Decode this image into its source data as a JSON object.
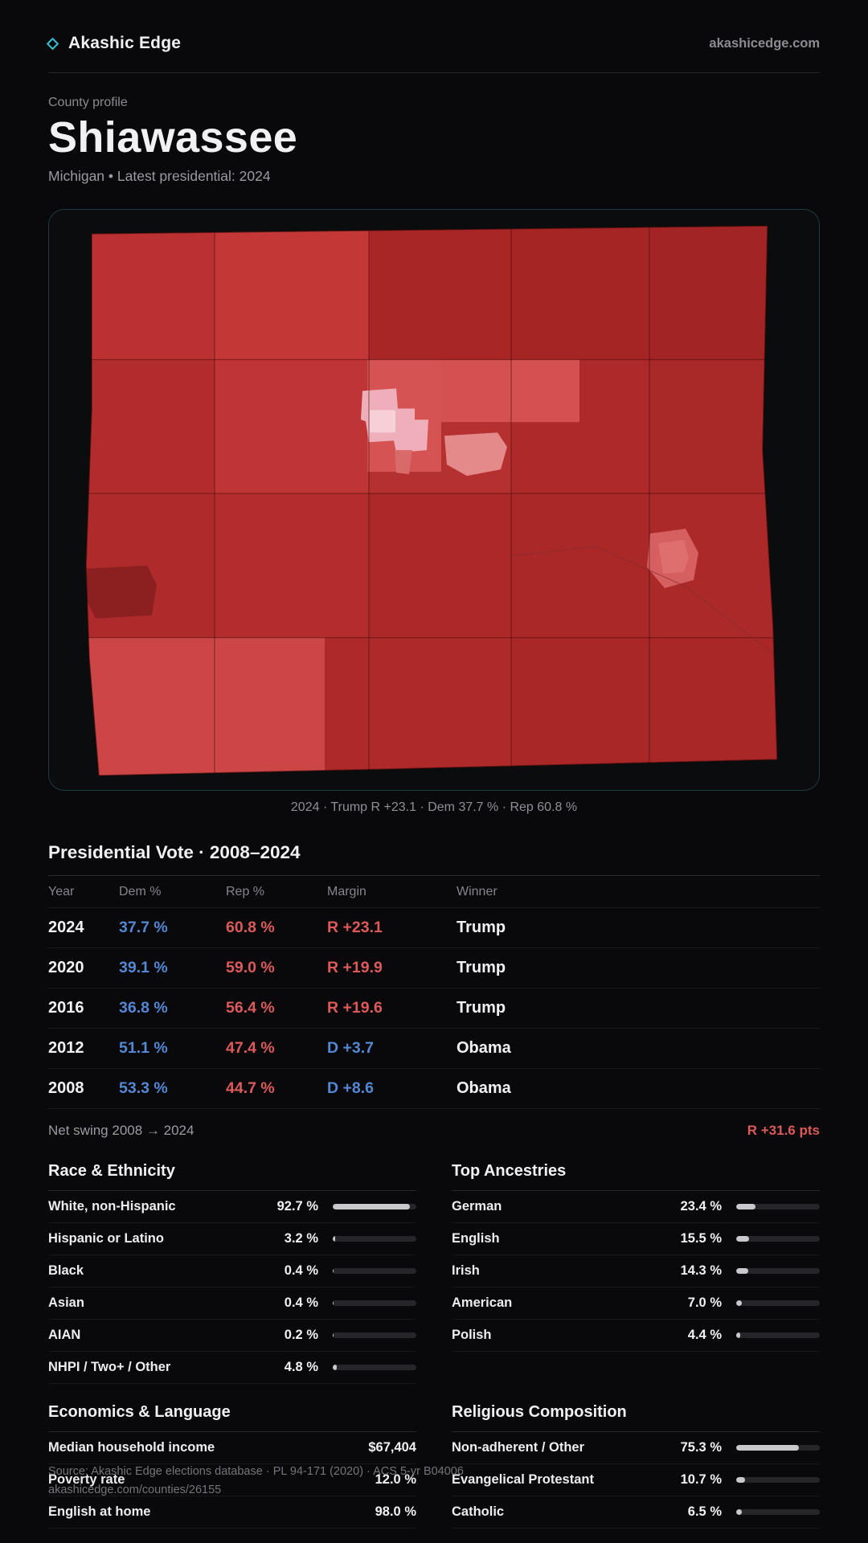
{
  "brand": {
    "name": "Akashic Edge",
    "domain": "akashicedge.com"
  },
  "profile": {
    "kicker": "County profile",
    "title": "Shiawassee",
    "subtitle": "Michigan • Latest presidential: 2024"
  },
  "map": {
    "caption": "2024 · Trump R +23.1 · Dem 37.7 % · Rep 60.8 %"
  },
  "vote_table": {
    "title": "Presidential Vote · 2008–2024",
    "columns": [
      "Year",
      "Dem %",
      "Rep %",
      "Margin",
      "Winner"
    ],
    "rows": [
      {
        "year": "2024",
        "dem": "37.7 %",
        "rep": "60.8 %",
        "margin": "R +23.1",
        "margin_party": "R",
        "winner": "Trump"
      },
      {
        "year": "2020",
        "dem": "39.1 %",
        "rep": "59.0 %",
        "margin": "R +19.9",
        "margin_party": "R",
        "winner": "Trump"
      },
      {
        "year": "2016",
        "dem": "36.8 %",
        "rep": "56.4 %",
        "margin": "R +19.6",
        "margin_party": "R",
        "winner": "Trump"
      },
      {
        "year": "2012",
        "dem": "51.1 %",
        "rep": "47.4 %",
        "margin": "D +3.7",
        "margin_party": "D",
        "winner": "Obama"
      },
      {
        "year": "2008",
        "dem": "53.3 %",
        "rep": "44.7 %",
        "margin": "D +8.6",
        "margin_party": "D",
        "winner": "Obama"
      }
    ]
  },
  "net_swing": {
    "label": "Net swing 2008 → 2024",
    "value": "R +31.6 pts"
  },
  "race": {
    "title": "Race & Ethnicity",
    "rows": [
      {
        "label": "White, non-Hispanic",
        "value": "92.7 %",
        "pct": 92.7
      },
      {
        "label": "Hispanic or Latino",
        "value": "3.2 %",
        "pct": 3.2
      },
      {
        "label": "Black",
        "value": "0.4 %",
        "pct": 0.4
      },
      {
        "label": "Asian",
        "value": "0.4 %",
        "pct": 0.4
      },
      {
        "label": "AIAN",
        "value": "0.2 %",
        "pct": 0.2
      },
      {
        "label": "NHPI / Two+ / Other",
        "value": "4.8 %",
        "pct": 4.8
      }
    ]
  },
  "ancestries": {
    "title": "Top Ancestries",
    "rows": [
      {
        "label": "German",
        "value": "23.4 %",
        "pct": 23.4
      },
      {
        "label": "English",
        "value": "15.5 %",
        "pct": 15.5
      },
      {
        "label": "Irish",
        "value": "14.3 %",
        "pct": 14.3
      },
      {
        "label": "American",
        "value": "7.0 %",
        "pct": 7.0
      },
      {
        "label": "Polish",
        "value": "4.4 %",
        "pct": 4.4
      }
    ]
  },
  "economics": {
    "title": "Economics & Language",
    "rows": [
      {
        "label": "Median household income",
        "value": "$67,404"
      },
      {
        "label": "Poverty rate",
        "value": "12.0 %"
      },
      {
        "label": "English at home",
        "value": "98.0 %"
      }
    ]
  },
  "religion": {
    "title": "Religious Composition",
    "rows": [
      {
        "label": "Non-adherent / Other",
        "value": "75.3 %",
        "pct": 75.3
      },
      {
        "label": "Evangelical Protestant",
        "value": "10.7 %",
        "pct": 10.7
      },
      {
        "label": "Catholic",
        "value": "6.5 %",
        "pct": 6.5
      }
    ]
  },
  "footer": {
    "line1": "Source: Akashic Edge elections database · PL 94-171 (2020) · ACS 5-yr B04006",
    "line2": "akashicedge.com/counties/26155"
  },
  "colors": {
    "accent": "#35c0d6",
    "dem": "#5487d4",
    "rep": "#dd5a5a"
  }
}
